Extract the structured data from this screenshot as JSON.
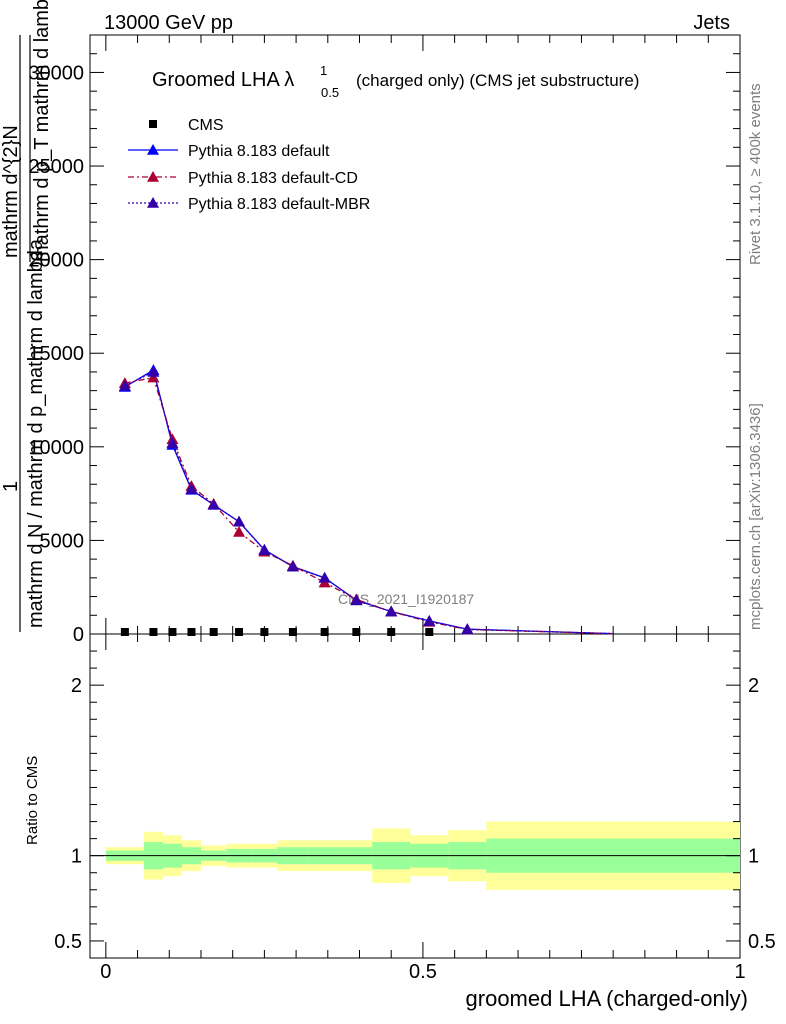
{
  "header": {
    "left": "13000 GeV pp",
    "right": "Jets",
    "side_top": "Rivet 3.1.10, ≥ 400k events",
    "side_bottom": "mcplots.cern.ch [arXiv:1306.3436]"
  },
  "colors": {
    "cms": "#000000",
    "default": "#0000ff",
    "cd": "#aa0033",
    "mbr": "#3300aa",
    "band_inner": "#99ff99",
    "band_outer": "#ffff99"
  },
  "chart_data": [
    {
      "type": "line",
      "title": "Groomed LHA λ",
      "title_sup": "1",
      "title_sub": "0.5",
      "title_suffix": "(charged only) (CMS jet substructure)",
      "watermark": "CMS_2021_I1920187",
      "ylabel_top": "1",
      "ylabel_bottom": "mathrm d N / mathrm d p_mathrm d lambda",
      "ylabel_overlay_top": "mathrm d^{2}N",
      "ylabel_overlay_mid": "mathrm d p_T mathrm d lambda",
      "ylim": [
        0,
        32000
      ],
      "yticks": [
        0,
        5000,
        10000,
        15000,
        20000,
        25000,
        30000
      ],
      "ytick_labels": [
        "0",
        "5000",
        "10000",
        "15000",
        "20000",
        "25000",
        "30000"
      ],
      "xlim": [
        -0.025,
        1.0
      ],
      "legend_position": "top-left",
      "series": [
        {
          "name": "CMS",
          "key": "cms",
          "marker": "square",
          "x": [
            0.03,
            0.075,
            0.105,
            0.135,
            0.17,
            0.21,
            0.25,
            0.295,
            0.345,
            0.395,
            0.45,
            0.51
          ],
          "values": [
            0,
            0,
            0,
            0,
            0,
            0,
            0,
            0,
            0,
            0,
            0,
            0
          ]
        },
        {
          "name": "Pythia 8.183 default",
          "key": "default",
          "marker": "triangle",
          "dash": "",
          "x": [
            0.03,
            0.075,
            0.105,
            0.135,
            0.17,
            0.21,
            0.25,
            0.295,
            0.345,
            0.395,
            0.45,
            0.51,
            0.57,
            0.8
          ],
          "values": [
            13200,
            14100,
            10100,
            7700,
            6900,
            6000,
            4500,
            3600,
            3000,
            1800,
            1200,
            700,
            260,
            20
          ]
        },
        {
          "name": "Pythia 8.183 default-CD",
          "key": "cd",
          "marker": "triangle",
          "dash": "6,3,2,3",
          "x": [
            0.03,
            0.075,
            0.105,
            0.135,
            0.17,
            0.21,
            0.25,
            0.295,
            0.345,
            0.395,
            0.45,
            0.51,
            0.57,
            0.8
          ],
          "values": [
            13400,
            13700,
            10400,
            7900,
            6950,
            5450,
            4400,
            3650,
            2750,
            1850,
            1200,
            650,
            240,
            20
          ]
        },
        {
          "name": "Pythia 8.183 default-MBR",
          "key": "mbr",
          "marker": "triangle",
          "dash": "2,2",
          "x": [
            0.03,
            0.075,
            0.105,
            0.135,
            0.17,
            0.21,
            0.25,
            0.295,
            0.345,
            0.395,
            0.45,
            0.51,
            0.57,
            0.8
          ],
          "values": [
            13250,
            14000,
            10200,
            7750,
            6900,
            6000,
            4480,
            3600,
            3000,
            1800,
            1200,
            690,
            250,
            20
          ]
        }
      ]
    },
    {
      "type": "area",
      "title": "ratio",
      "ylabel": "Ratio to CMS",
      "xlabel": "groomed LHA (charged-only)",
      "ylim": [
        0.4,
        2.3
      ],
      "yticks": [
        0.5,
        1,
        2
      ],
      "ytick_labels": [
        "0.5",
        "1",
        "2"
      ],
      "xlim": [
        -0.025,
        1.0
      ],
      "xticks": [
        0,
        0.5,
        1
      ],
      "xtick_labels": [
        "0",
        "0.5",
        "1"
      ],
      "bins": [
        {
          "x0": 0.0,
          "x1": 0.06,
          "inner": [
            0.97,
            1.03
          ],
          "outer": [
            0.95,
            1.05
          ]
        },
        {
          "x0": 0.06,
          "x1": 0.09,
          "inner": [
            0.92,
            1.08
          ],
          "outer": [
            0.86,
            1.14
          ]
        },
        {
          "x0": 0.09,
          "x1": 0.12,
          "inner": [
            0.93,
            1.07
          ],
          "outer": [
            0.88,
            1.12
          ]
        },
        {
          "x0": 0.12,
          "x1": 0.15,
          "inner": [
            0.95,
            1.05
          ],
          "outer": [
            0.91,
            1.09
          ]
        },
        {
          "x0": 0.15,
          "x1": 0.19,
          "inner": [
            0.97,
            1.03
          ],
          "outer": [
            0.94,
            1.06
          ]
        },
        {
          "x0": 0.19,
          "x1": 0.23,
          "inner": [
            0.96,
            1.04
          ],
          "outer": [
            0.93,
            1.07
          ]
        },
        {
          "x0": 0.23,
          "x1": 0.27,
          "inner": [
            0.96,
            1.04
          ],
          "outer": [
            0.93,
            1.07
          ]
        },
        {
          "x0": 0.27,
          "x1": 0.32,
          "inner": [
            0.95,
            1.05
          ],
          "outer": [
            0.91,
            1.09
          ]
        },
        {
          "x0": 0.32,
          "x1": 0.37,
          "inner": [
            0.95,
            1.05
          ],
          "outer": [
            0.91,
            1.09
          ]
        },
        {
          "x0": 0.37,
          "x1": 0.42,
          "inner": [
            0.95,
            1.05
          ],
          "outer": [
            0.91,
            1.09
          ]
        },
        {
          "x0": 0.42,
          "x1": 0.48,
          "inner": [
            0.92,
            1.08
          ],
          "outer": [
            0.84,
            1.16
          ]
        },
        {
          "x0": 0.48,
          "x1": 0.54,
          "inner": [
            0.93,
            1.07
          ],
          "outer": [
            0.88,
            1.12
          ]
        },
        {
          "x0": 0.54,
          "x1": 0.6,
          "inner": [
            0.92,
            1.08
          ],
          "outer": [
            0.85,
            1.15
          ]
        },
        {
          "x0": 0.6,
          "x1": 1.0,
          "inner": [
            0.9,
            1.1
          ],
          "outer": [
            0.8,
            1.2
          ]
        }
      ]
    }
  ]
}
